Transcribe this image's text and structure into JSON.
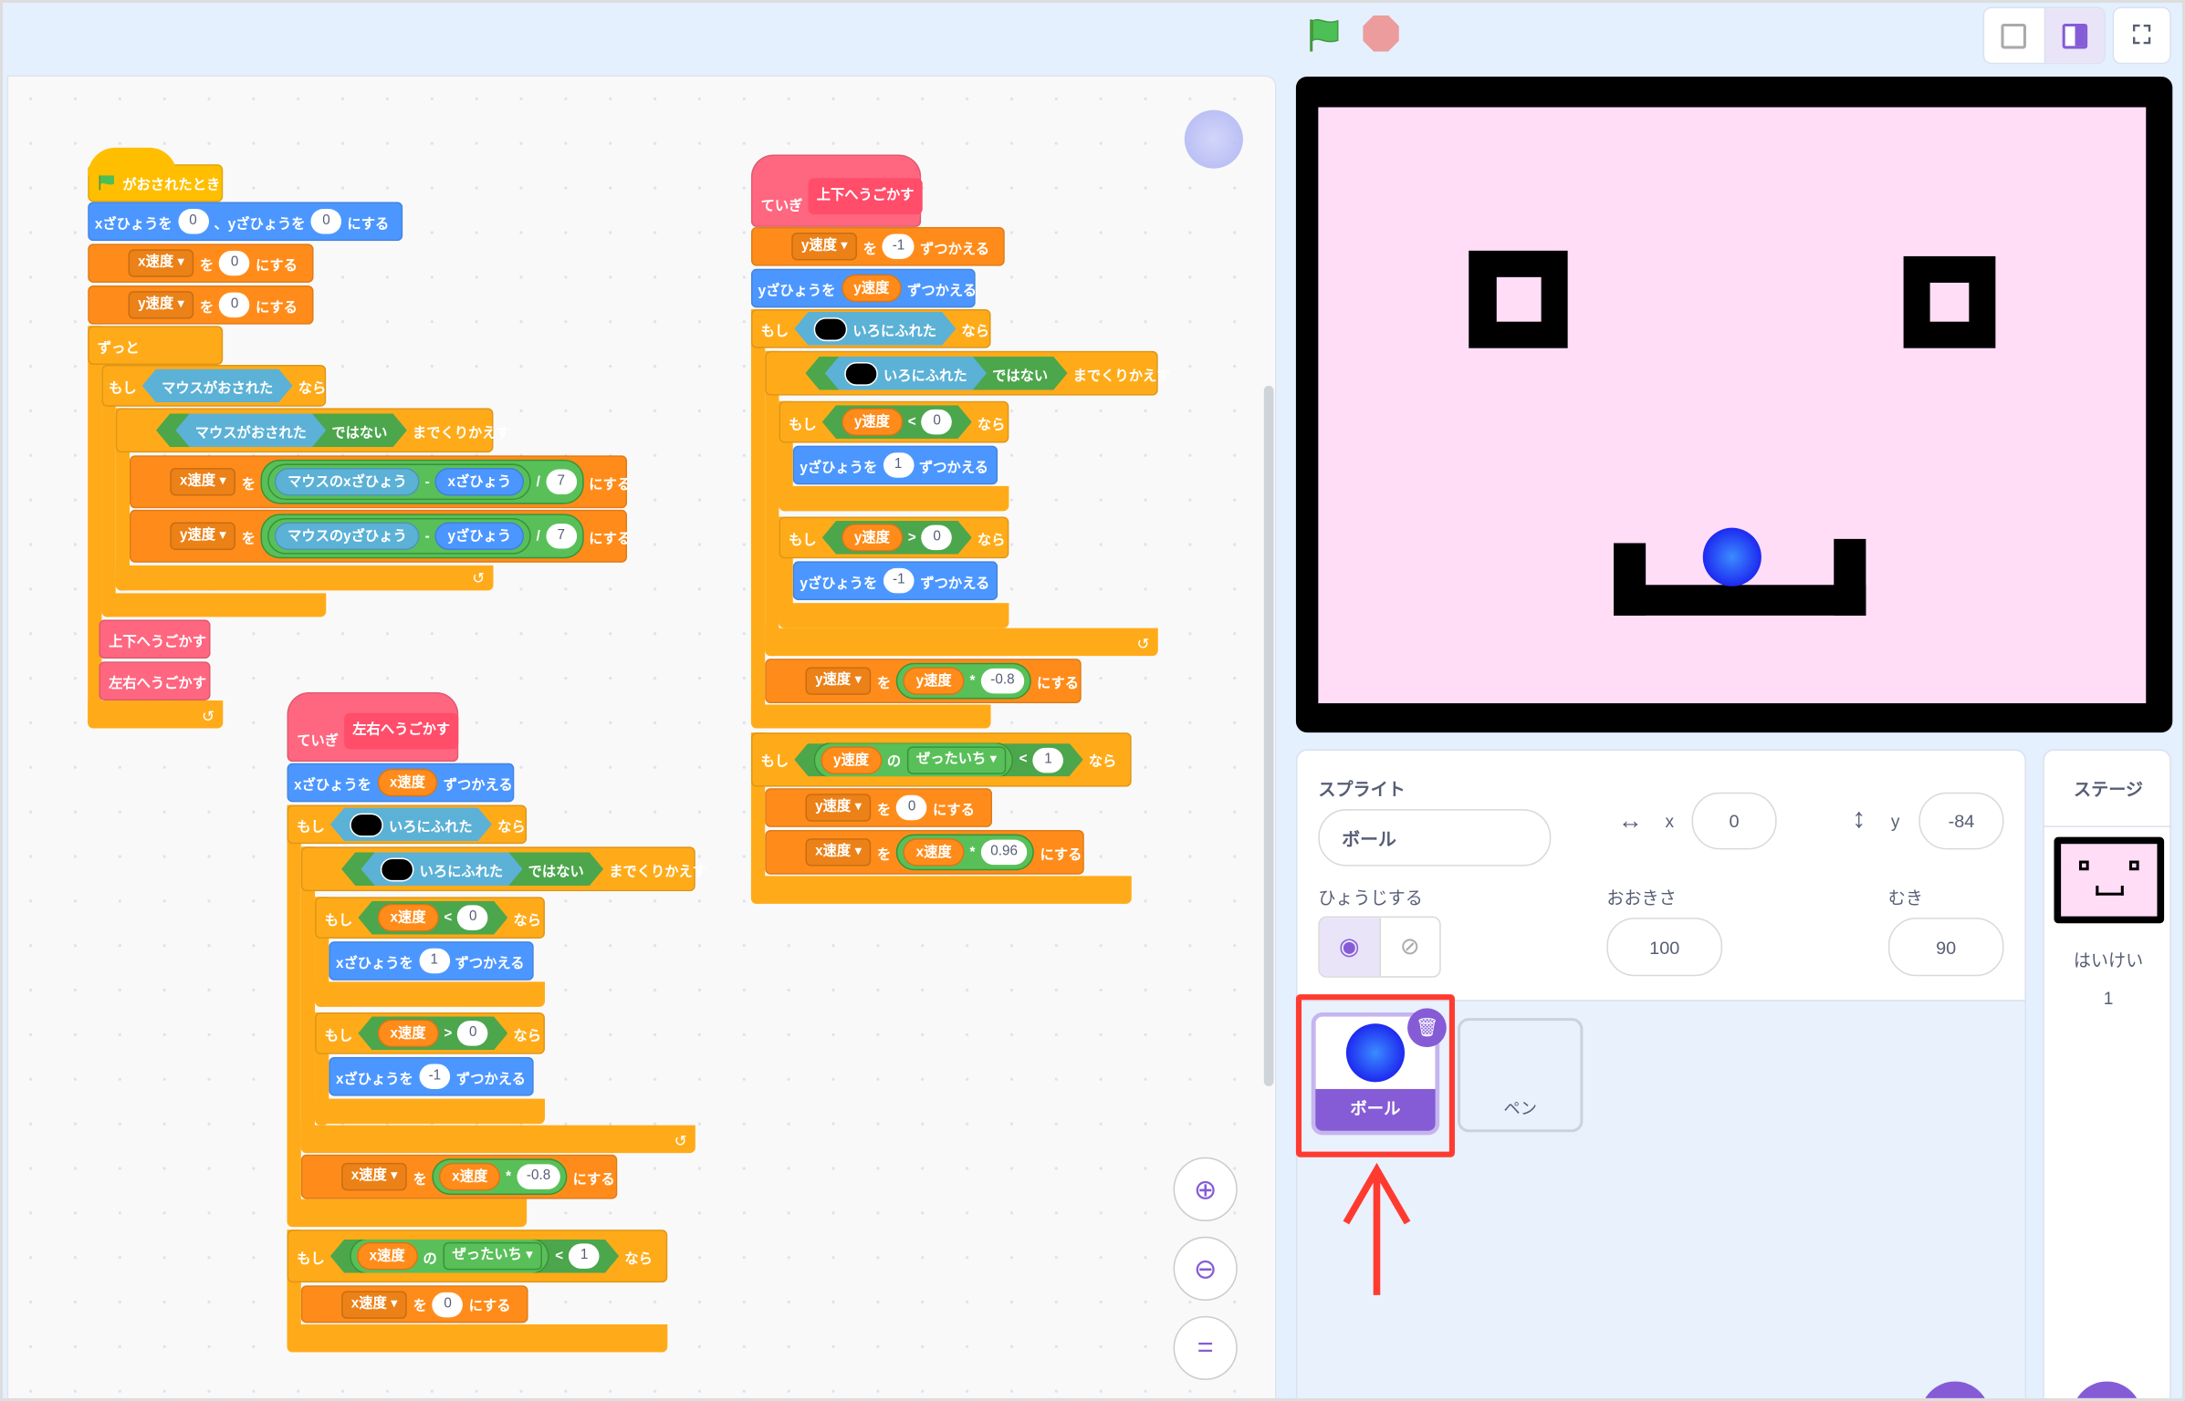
{
  "colors": {
    "events": "#FFBF00",
    "motion": "#4C97FF",
    "variables": "#FF8C1A",
    "control": "#FFAB19",
    "sensing": "#5CB1D6",
    "operators": "#59C059",
    "custom": "#FF6680",
    "accent": "#855CD6",
    "highlight": "#FF3B30",
    "stage_bg": "#FFDDF7"
  },
  "toolbar": {
    "green_flag": "green-flag-icon",
    "stop": "stop-icon",
    "small_stage": "small-stage-icon",
    "normal_stage": "normal-stage-icon",
    "fullscreen": "fullscreen-icon"
  },
  "scripts": [
    {
      "blocks": [
        {
          "cat": "events",
          "parts": [
            {
              "k": "flag"
            },
            {
              "k": "t",
              "v": "がおされたとき"
            }
          ]
        },
        {
          "cat": "motion",
          "parts": [
            {
              "k": "t",
              "v": "xざひょうを"
            },
            {
              "k": "n",
              "v": "0"
            },
            {
              "k": "t",
              "v": "、yざひょうを"
            },
            {
              "k": "n",
              "v": "0"
            },
            {
              "k": "t",
              "v": "にする"
            }
          ]
        },
        {
          "cat": "variables",
          "parts": [
            {
              "k": "d",
              "v": "x速度"
            },
            {
              "k": "t",
              "v": "を"
            },
            {
              "k": "n",
              "v": "0"
            },
            {
              "k": "t",
              "v": "にする"
            }
          ]
        },
        {
          "cat": "variables",
          "parts": [
            {
              "k": "d",
              "v": "y速度"
            },
            {
              "k": "t",
              "v": "を"
            },
            {
              "k": "n",
              "v": "0"
            },
            {
              "k": "t",
              "v": "にする"
            }
          ]
        },
        {
          "cat": "control",
          "parts": [
            {
              "k": "t",
              "v": "ずっと"
            }
          ]
        },
        {
          "cat": "control",
          "parts": [
            {
              "k": "t",
              "v": "もし"
            },
            {
              "k": "b",
              "c": "sensing",
              "p": [
                {
                  "k": "t",
                  "v": "マウスがおされた"
                }
              ]
            },
            {
              "k": "t",
              "v": "なら"
            }
          ]
        },
        {
          "cat": "control",
          "parts": [
            {
              "k": "b",
              "c": "operators",
              "p": [
                {
                  "k": "b",
                  "c": "sensing",
                  "p": [
                    {
                      "k": "t",
                      "v": "マウスがおされた"
                    }
                  ]
                },
                {
                  "k": "t",
                  "v": "ではない"
                }
              ]
            },
            {
              "k": "t",
              "v": "までくりかえす"
            }
          ]
        },
        {
          "cat": "variables",
          "parts": [
            {
              "k": "d",
              "v": "x速度"
            },
            {
              "k": "t",
              "v": "を"
            },
            {
              "k": "o",
              "p": [
                {
                  "k": "o",
                  "p": [
                    {
                      "k": "r",
                      "c": "sensing",
                      "v": "マウスのxざひょう"
                    },
                    {
                      "k": "t",
                      "v": "-"
                    },
                    {
                      "k": "r",
                      "c": "motion",
                      "v": "xざひょう"
                    }
                  ]
                },
                {
                  "k": "t",
                  "v": "/"
                },
                {
                  "k": "n",
                  "v": "7"
                }
              ]
            },
            {
              "k": "t",
              "v": "にする"
            }
          ]
        },
        {
          "cat": "variables",
          "parts": [
            {
              "k": "d",
              "v": "y速度"
            },
            {
              "k": "t",
              "v": "を"
            },
            {
              "k": "o",
              "p": [
                {
                  "k": "o",
                  "p": [
                    {
                      "k": "r",
                      "c": "sensing",
                      "v": "マウスのyざひょう"
                    },
                    {
                      "k": "t",
                      "v": "-"
                    },
                    {
                      "k": "r",
                      "c": "motion",
                      "v": "yざひょう"
                    }
                  ]
                },
                {
                  "k": "t",
                  "v": "/"
                },
                {
                  "k": "n",
                  "v": "7"
                }
              ]
            },
            {
              "k": "t",
              "v": "にする"
            }
          ]
        },
        {
          "cat": "custom",
          "parts": [
            {
              "k": "t",
              "v": "上下へうごかす"
            }
          ]
        },
        {
          "cat": "custom",
          "parts": [
            {
              "k": "t",
              "v": "左右へうごかす"
            }
          ]
        }
      ]
    },
    {
      "blocks": [
        {
          "cat": "custom",
          "parts": [
            {
              "k": "t",
              "v": "ていぎ"
            },
            {
              "k": "def",
              "v": "左右へうごかす"
            }
          ]
        },
        {
          "cat": "motion",
          "parts": [
            {
              "k": "t",
              "v": "xざひょうを"
            },
            {
              "k": "r",
              "c": "variables",
              "v": "x速度"
            },
            {
              "k": "t",
              "v": "ずつかえる"
            }
          ]
        },
        {
          "cat": "control",
          "parts": [
            {
              "k": "t",
              "v": "もし"
            },
            {
              "k": "b",
              "c": "sensing",
              "p": [
                {
                  "k": "sw"
                },
                {
                  "k": "t",
                  "v": "いろにふれた"
                }
              ]
            },
            {
              "k": "t",
              "v": "なら"
            }
          ]
        },
        {
          "cat": "control",
          "parts": [
            {
              "k": "b",
              "c": "operators",
              "p": [
                {
                  "k": "b",
                  "c": "sensing",
                  "p": [
                    {
                      "k": "sw"
                    },
                    {
                      "k": "t",
                      "v": "いろにふれた"
                    }
                  ]
                },
                {
                  "k": "t",
                  "v": "ではない"
                }
              ]
            },
            {
              "k": "t",
              "v": "までくりかえす"
            }
          ]
        },
        {
          "cat": "control",
          "parts": [
            {
              "k": "t",
              "v": "もし"
            },
            {
              "k": "b",
              "c": "operators",
              "p": [
                {
                  "k": "r",
                  "c": "variables",
                  "v": "x速度"
                },
                {
                  "k": "t",
                  "v": "<"
                },
                {
                  "k": "n",
                  "v": "0"
                }
              ]
            },
            {
              "k": "t",
              "v": "なら"
            }
          ]
        },
        {
          "cat": "motion",
          "parts": [
            {
              "k": "t",
              "v": "xざひょうを"
            },
            {
              "k": "n",
              "v": "1"
            },
            {
              "k": "t",
              "v": "ずつかえる"
            }
          ]
        },
        {
          "cat": "control",
          "parts": [
            {
              "k": "t",
              "v": "もし"
            },
            {
              "k": "b",
              "c": "operators",
              "p": [
                {
                  "k": "r",
                  "c": "variables",
                  "v": "x速度"
                },
                {
                  "k": "t",
                  "v": ">"
                },
                {
                  "k": "n",
                  "v": "0"
                }
              ]
            },
            {
              "k": "t",
              "v": "なら"
            }
          ]
        },
        {
          "cat": "motion",
          "parts": [
            {
              "k": "t",
              "v": "xざひょうを"
            },
            {
              "k": "n",
              "v": "-1"
            },
            {
              "k": "t",
              "v": "ずつかえる"
            }
          ]
        },
        {
          "cat": "variables",
          "parts": [
            {
              "k": "d",
              "v": "x速度"
            },
            {
              "k": "t",
              "v": "を"
            },
            {
              "k": "o",
              "p": [
                {
                  "k": "r",
                  "c": "variables",
                  "v": "x速度"
                },
                {
                  "k": "t",
                  "v": "*"
                },
                {
                  "k": "n",
                  "v": "-0.8"
                }
              ]
            },
            {
              "k": "t",
              "v": "にする"
            }
          ]
        },
        {
          "cat": "control",
          "parts": [
            {
              "k": "t",
              "v": "もし"
            },
            {
              "k": "b",
              "c": "operators",
              "p": [
                {
                  "k": "o",
                  "p": [
                    {
                      "k": "r",
                      "c": "variables",
                      "v": "x速度"
                    },
                    {
                      "k": "t",
                      "v": "の"
                    },
                    {
                      "k": "m",
                      "v": "ぜったいち"
                    }
                  ]
                },
                {
                  "k": "t",
                  "v": "<"
                },
                {
                  "k": "n",
                  "v": "1"
                }
              ]
            },
            {
              "k": "t",
              "v": "なら"
            }
          ]
        },
        {
          "cat": "variables",
          "parts": [
            {
              "k": "d",
              "v": "x速度"
            },
            {
              "k": "t",
              "v": "を"
            },
            {
              "k": "n",
              "v": "0"
            },
            {
              "k": "t",
              "v": "にする"
            }
          ]
        }
      ]
    },
    {
      "blocks": [
        {
          "cat": "custom",
          "parts": [
            {
              "k": "t",
              "v": "ていぎ"
            },
            {
              "k": "def",
              "v": "上下へうごかす"
            }
          ]
        },
        {
          "cat": "variables",
          "parts": [
            {
              "k": "d",
              "v": "y速度"
            },
            {
              "k": "t",
              "v": "を"
            },
            {
              "k": "n",
              "v": "-1"
            },
            {
              "k": "t",
              "v": "ずつかえる"
            }
          ]
        },
        {
          "cat": "motion",
          "parts": [
            {
              "k": "t",
              "v": "yざひょうを"
            },
            {
              "k": "r",
              "c": "variables",
              "v": "y速度"
            },
            {
              "k": "t",
              "v": "ずつかえる"
            }
          ]
        },
        {
          "cat": "control",
          "parts": [
            {
              "k": "t",
              "v": "もし"
            },
            {
              "k": "b",
              "c": "sensing",
              "p": [
                {
                  "k": "sw"
                },
                {
                  "k": "t",
                  "v": "いろにふれた"
                }
              ]
            },
            {
              "k": "t",
              "v": "なら"
            }
          ]
        },
        {
          "cat": "control",
          "parts": [
            {
              "k": "b",
              "c": "operators",
              "p": [
                {
                  "k": "b",
                  "c": "sensing",
                  "p": [
                    {
                      "k": "sw"
                    },
                    {
                      "k": "t",
                      "v": "いろにふれた"
                    }
                  ]
                },
                {
                  "k": "t",
                  "v": "ではない"
                }
              ]
            },
            {
              "k": "t",
              "v": "までくりかえす"
            }
          ]
        },
        {
          "cat": "control",
          "parts": [
            {
              "k": "t",
              "v": "もし"
            },
            {
              "k": "b",
              "c": "operators",
              "p": [
                {
                  "k": "r",
                  "c": "variables",
                  "v": "y速度"
                },
                {
                  "k": "t",
                  "v": "<"
                },
                {
                  "k": "n",
                  "v": "0"
                }
              ]
            },
            {
              "k": "t",
              "v": "なら"
            }
          ]
        },
        {
          "cat": "motion",
          "parts": [
            {
              "k": "t",
              "v": "yざひょうを"
            },
            {
              "k": "n",
              "v": "1"
            },
            {
              "k": "t",
              "v": "ずつかえる"
            }
          ]
        },
        {
          "cat": "control",
          "parts": [
            {
              "k": "t",
              "v": "もし"
            },
            {
              "k": "b",
              "c": "operators",
              "p": [
                {
                  "k": "r",
                  "c": "variables",
                  "v": "y速度"
                },
                {
                  "k": "t",
                  "v": ">"
                },
                {
                  "k": "n",
                  "v": "0"
                }
              ]
            },
            {
              "k": "t",
              "v": "なら"
            }
          ]
        },
        {
          "cat": "motion",
          "parts": [
            {
              "k": "t",
              "v": "yざひょうを"
            },
            {
              "k": "n",
              "v": "-1"
            },
            {
              "k": "t",
              "v": "ずつかえる"
            }
          ]
        },
        {
          "cat": "variables",
          "parts": [
            {
              "k": "d",
              "v": "y速度"
            },
            {
              "k": "t",
              "v": "を"
            },
            {
              "k": "o",
              "p": [
                {
                  "k": "r",
                  "c": "variables",
                  "v": "y速度"
                },
                {
                  "k": "t",
                  "v": "*"
                },
                {
                  "k": "n",
                  "v": "-0.8"
                }
              ]
            },
            {
              "k": "t",
              "v": "にする"
            }
          ]
        },
        {
          "cat": "control",
          "parts": [
            {
              "k": "t",
              "v": "もし"
            },
            {
              "k": "b",
              "c": "operators",
              "p": [
                {
                  "k": "o",
                  "p": [
                    {
                      "k": "r",
                      "c": "variables",
                      "v": "y速度"
                    },
                    {
                      "k": "t",
                      "v": "の"
                    },
                    {
                      "k": "m",
                      "v": "ぜったいち"
                    }
                  ]
                },
                {
                  "k": "t",
                  "v": "<"
                },
                {
                  "k": "n",
                  "v": "1"
                }
              ]
            },
            {
              "k": "t",
              "v": "なら"
            }
          ]
        },
        {
          "cat": "variables",
          "parts": [
            {
              "k": "d",
              "v": "y速度"
            },
            {
              "k": "t",
              "v": "を"
            },
            {
              "k": "n",
              "v": "0"
            },
            {
              "k": "t",
              "v": "にする"
            }
          ]
        },
        {
          "cat": "variables",
          "parts": [
            {
              "k": "d",
              "v": "x速度"
            },
            {
              "k": "t",
              "v": "を"
            },
            {
              "k": "o",
              "p": [
                {
                  "k": "r",
                  "c": "variables",
                  "v": "x速度"
                },
                {
                  "k": "t",
                  "v": "*"
                },
                {
                  "k": "n",
                  "v": "0.96"
                }
              ]
            },
            {
              "k": "t",
              "v": "にする"
            }
          ]
        }
      ]
    }
  ],
  "zoom_controls": {
    "zoom_in": "zoom-in-icon",
    "zoom_out": "zoom-out-icon",
    "reset": "="
  },
  "sprite_info": {
    "label": "スプライト",
    "name": "ボール",
    "x_label": "x",
    "x": "0",
    "y_label": "y",
    "y": "-84",
    "show_label": "ひょうじする",
    "visible": true,
    "size_label": "おおきさ",
    "size": "100",
    "direction_label": "むき",
    "direction": "90"
  },
  "sprites": [
    {
      "name": "ボール",
      "selected": true
    },
    {
      "name": "ペン",
      "selected": false
    }
  ],
  "stage_panel": {
    "title": "ステージ",
    "backdrops_label": "はいけい",
    "backdrops_count": "1"
  }
}
